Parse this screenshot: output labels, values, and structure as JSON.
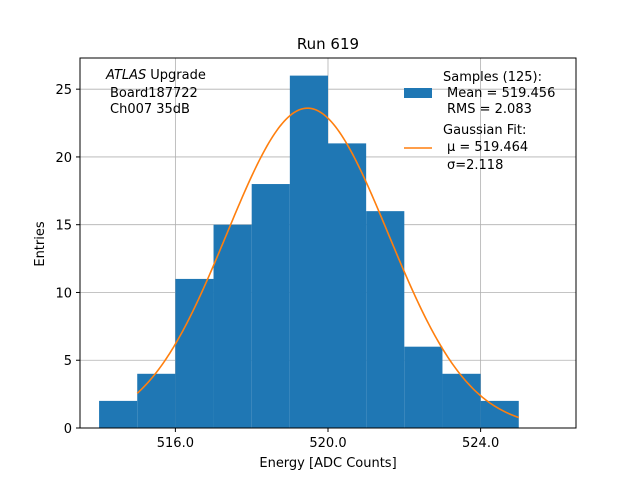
{
  "chart_data": {
    "type": "bar",
    "title": "Run 619",
    "xlabel": "Energy [ADC Counts]",
    "ylabel": "Entries",
    "xlim": [
      513.5,
      526.5
    ],
    "ylim": [
      0,
      27.3
    ],
    "grid": true,
    "x_ticks": [
      516,
      520,
      524
    ],
    "x_tick_labels": [
      "516.0",
      "520.0",
      "524.0"
    ],
    "y_ticks": [
      0,
      5,
      10,
      15,
      20,
      25
    ],
    "y_tick_labels": [
      "0",
      "5",
      "10",
      "15",
      "20",
      "25"
    ],
    "bins": [
      {
        "left": 514,
        "right": 515,
        "count": 2
      },
      {
        "left": 515,
        "right": 516,
        "count": 4
      },
      {
        "left": 516,
        "right": 517,
        "count": 11
      },
      {
        "left": 517,
        "right": 518,
        "count": 15
      },
      {
        "left": 518,
        "right": 519,
        "count": 18
      },
      {
        "left": 519,
        "right": 520,
        "count": 26
      },
      {
        "left": 520,
        "right": 521,
        "count": 21
      },
      {
        "left": 521,
        "right": 522,
        "count": 16
      },
      {
        "left": 522,
        "right": 523,
        "count": 6
      },
      {
        "left": 523,
        "right": 524,
        "count": 4
      },
      {
        "left": 524,
        "right": 525,
        "count": 2
      }
    ],
    "fit": {
      "type": "gaussian",
      "mu": 519.464,
      "sigma": 2.118,
      "amplitude": 23.6,
      "x_range": [
        515,
        525
      ]
    },
    "colors": {
      "histogram": "#1f77b4",
      "fit": "#ff7f0e",
      "grid": "#b0b0b0"
    },
    "annotation": {
      "lines": [
        "Upgrade",
        "Board187722",
        "Ch007 35dB"
      ],
      "italic_prefix": "ATLAS"
    },
    "legend": {
      "placement": "top-right",
      "entries": [
        {
          "type": "patch",
          "lines": [
            "Samples (125):",
            "Mean = 519.456",
            "RMS = 2.083"
          ]
        },
        {
          "type": "line",
          "lines": [
            "Gaussian Fit:",
            "μ = 519.464",
            "σ=2.118"
          ]
        }
      ]
    }
  }
}
